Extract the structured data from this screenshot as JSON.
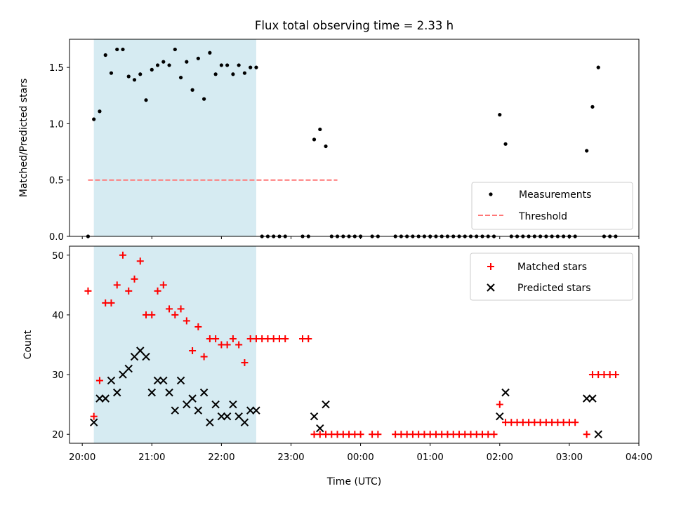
{
  "chart_data": [
    {
      "type": "scatter",
      "title": "Flux total observing time = 2.33 h",
      "xlabel": "",
      "ylabel": "Matched/Predicted stars",
      "xlim": [
        "19:49",
        "04:00"
      ],
      "ylim": [
        0,
        1.75
      ],
      "yticks": [
        "0.0",
        "0.5",
        "1.0",
        "1.5"
      ],
      "shaded_region": {
        "x": [
          "20:10",
          "22:30"
        ],
        "color": "#add8e6"
      },
      "legend": {
        "location": "lower-right",
        "entries": [
          "Measurements",
          "Threshold"
        ]
      },
      "threshold": {
        "name": "Threshold",
        "x": [
          "20:05",
          "23:40"
        ],
        "y": 0.5,
        "color": "#ff7777"
      },
      "series": [
        {
          "name": "Measurements",
          "color": "#000000",
          "points": [
            [
              "20:05",
              0.0
            ],
            [
              "20:10",
              1.04
            ],
            [
              "20:15",
              1.11
            ],
            [
              "20:20",
              1.61
            ],
            [
              "20:25",
              1.45
            ],
            [
              "20:30",
              1.66
            ],
            [
              "20:35",
              1.66
            ],
            [
              "20:40",
              1.42
            ],
            [
              "20:45",
              1.39
            ],
            [
              "20:50",
              1.44
            ],
            [
              "20:55",
              1.21
            ],
            [
              "21:00",
              1.48
            ],
            [
              "21:05",
              1.52
            ],
            [
              "21:10",
              1.55
            ],
            [
              "21:15",
              1.52
            ],
            [
              "21:20",
              1.66
            ],
            [
              "21:25",
              1.41
            ],
            [
              "21:30",
              1.55
            ],
            [
              "21:35",
              1.3
            ],
            [
              "21:40",
              1.58
            ],
            [
              "21:45",
              1.22
            ],
            [
              "21:50",
              1.63
            ],
            [
              "21:55",
              1.44
            ],
            [
              "22:00",
              1.52
            ],
            [
              "22:05",
              1.52
            ],
            [
              "22:10",
              1.44
            ],
            [
              "22:15",
              1.52
            ],
            [
              "22:20",
              1.45
            ],
            [
              "22:25",
              1.5
            ],
            [
              "22:30",
              1.5
            ],
            [
              "22:35",
              0.0
            ],
            [
              "22:40",
              0.0
            ],
            [
              "22:45",
              0.0
            ],
            [
              "22:50",
              0.0
            ],
            [
              "22:55",
              0.0
            ],
            [
              "23:10",
              0.0
            ],
            [
              "23:15",
              0.0
            ],
            [
              "23:20",
              0.86
            ],
            [
              "23:25",
              0.95
            ],
            [
              "23:30",
              0.8
            ],
            [
              "23:35",
              0.0
            ],
            [
              "23:40",
              0.0
            ],
            [
              "23:45",
              0.0
            ],
            [
              "23:50",
              0.0
            ],
            [
              "23:55",
              0.0
            ],
            [
              "00:00",
              0.0
            ],
            [
              "00:10",
              0.0
            ],
            [
              "00:15",
              0.0
            ],
            [
              "00:30",
              0.0
            ],
            [
              "00:35",
              0.0
            ],
            [
              "00:40",
              0.0
            ],
            [
              "00:45",
              0.0
            ],
            [
              "00:50",
              0.0
            ],
            [
              "00:55",
              0.0
            ],
            [
              "01:00",
              0.0
            ],
            [
              "01:05",
              0.0
            ],
            [
              "01:10",
              0.0
            ],
            [
              "01:15",
              0.0
            ],
            [
              "01:20",
              0.0
            ],
            [
              "01:25",
              0.0
            ],
            [
              "01:30",
              0.0
            ],
            [
              "01:35",
              0.0
            ],
            [
              "01:40",
              0.0
            ],
            [
              "01:45",
              0.0
            ],
            [
              "01:50",
              0.0
            ],
            [
              "01:55",
              0.0
            ],
            [
              "02:00",
              1.08
            ],
            [
              "02:05",
              0.82
            ],
            [
              "02:10",
              0.0
            ],
            [
              "02:15",
              0.0
            ],
            [
              "02:20",
              0.0
            ],
            [
              "02:25",
              0.0
            ],
            [
              "02:30",
              0.0
            ],
            [
              "02:35",
              0.0
            ],
            [
              "02:40",
              0.0
            ],
            [
              "02:45",
              0.0
            ],
            [
              "02:50",
              0.0
            ],
            [
              "02:55",
              0.0
            ],
            [
              "03:00",
              0.0
            ],
            [
              "03:05",
              0.0
            ],
            [
              "03:15",
              0.76
            ],
            [
              "03:20",
              1.15
            ],
            [
              "03:25",
              1.5
            ],
            [
              "03:30",
              0.0
            ],
            [
              "03:35",
              0.0
            ],
            [
              "03:40",
              0.0
            ]
          ]
        }
      ]
    },
    {
      "type": "scatter",
      "title": "",
      "xlabel": "Time (UTC)",
      "ylabel": "Count",
      "xlim": [
        "19:49",
        "04:00"
      ],
      "ylim": [
        18.5,
        51.5
      ],
      "yticks": [
        "20",
        "30",
        "40",
        "50"
      ],
      "xticks": [
        "20:00",
        "21:00",
        "22:00",
        "23:00",
        "00:00",
        "01:00",
        "02:00",
        "03:00",
        "04:00"
      ],
      "shaded_region": {
        "x": [
          "20:10",
          "22:30"
        ],
        "color": "#add8e6"
      },
      "legend": {
        "location": "top-right",
        "entries": [
          "Matched stars",
          "Predicted stars"
        ]
      },
      "series": [
        {
          "name": "Matched stars",
          "marker": "+",
          "color": "#ff0000",
          "points": [
            [
              "20:05",
              44
            ],
            [
              "20:10",
              23
            ],
            [
              "20:15",
              29
            ],
            [
              "20:20",
              42
            ],
            [
              "20:25",
              42
            ],
            [
              "20:30",
              45
            ],
            [
              "20:35",
              50
            ],
            [
              "20:40",
              44
            ],
            [
              "20:45",
              46
            ],
            [
              "20:50",
              49
            ],
            [
              "20:55",
              40
            ],
            [
              "21:00",
              40
            ],
            [
              "21:05",
              44
            ],
            [
              "21:10",
              45
            ],
            [
              "21:15",
              41
            ],
            [
              "21:20",
              40
            ],
            [
              "21:25",
              41
            ],
            [
              "21:30",
              39
            ],
            [
              "21:35",
              34
            ],
            [
              "21:40",
              38
            ],
            [
              "21:45",
              33
            ],
            [
              "21:50",
              36
            ],
            [
              "21:55",
              36
            ],
            [
              "22:00",
              35
            ],
            [
              "22:05",
              35
            ],
            [
              "22:10",
              36
            ],
            [
              "22:15",
              35
            ],
            [
              "22:20",
              32
            ],
            [
              "22:25",
              36
            ],
            [
              "22:30",
              36
            ],
            [
              "22:35",
              36
            ],
            [
              "22:40",
              36
            ],
            [
              "22:45",
              36
            ],
            [
              "22:50",
              36
            ],
            [
              "22:55",
              36
            ],
            [
              "23:10",
              36
            ],
            [
              "23:15",
              36
            ],
            [
              "23:20",
              20
            ],
            [
              "23:25",
              20
            ],
            [
              "23:30",
              20
            ],
            [
              "23:35",
              20
            ],
            [
              "23:40",
              20
            ],
            [
              "23:45",
              20
            ],
            [
              "23:50",
              20
            ],
            [
              "23:55",
              20
            ],
            [
              "00:00",
              20
            ],
            [
              "00:10",
              20
            ],
            [
              "00:15",
              20
            ],
            [
              "00:30",
              20
            ],
            [
              "00:35",
              20
            ],
            [
              "00:40",
              20
            ],
            [
              "00:45",
              20
            ],
            [
              "00:50",
              20
            ],
            [
              "00:55",
              20
            ],
            [
              "01:00",
              20
            ],
            [
              "01:05",
              20
            ],
            [
              "01:10",
              20
            ],
            [
              "01:15",
              20
            ],
            [
              "01:20",
              20
            ],
            [
              "01:25",
              20
            ],
            [
              "01:30",
              20
            ],
            [
              "01:35",
              20
            ],
            [
              "01:40",
              20
            ],
            [
              "01:45",
              20
            ],
            [
              "01:50",
              20
            ],
            [
              "01:55",
              20
            ],
            [
              "02:00",
              25
            ],
            [
              "02:05",
              22
            ],
            [
              "02:10",
              22
            ],
            [
              "02:15",
              22
            ],
            [
              "02:20",
              22
            ],
            [
              "02:25",
              22
            ],
            [
              "02:30",
              22
            ],
            [
              "02:35",
              22
            ],
            [
              "02:40",
              22
            ],
            [
              "02:45",
              22
            ],
            [
              "02:50",
              22
            ],
            [
              "02:55",
              22
            ],
            [
              "03:00",
              22
            ],
            [
              "03:05",
              22
            ],
            [
              "03:15",
              20
            ],
            [
              "03:20",
              30
            ],
            [
              "03:25",
              30
            ],
            [
              "03:30",
              30
            ],
            [
              "03:35",
              30
            ],
            [
              "03:40",
              30
            ]
          ]
        },
        {
          "name": "Predicted stars",
          "marker": "x",
          "color": "#000000",
          "points": [
            [
              "20:10",
              22
            ],
            [
              "20:15",
              26
            ],
            [
              "20:20",
              26
            ],
            [
              "20:25",
              29
            ],
            [
              "20:30",
              27
            ],
            [
              "20:35",
              30
            ],
            [
              "20:40",
              31
            ],
            [
              "20:45",
              33
            ],
            [
              "20:50",
              34
            ],
            [
              "20:55",
              33
            ],
            [
              "21:00",
              27
            ],
            [
              "21:05",
              29
            ],
            [
              "21:10",
              29
            ],
            [
              "21:15",
              27
            ],
            [
              "21:20",
              24
            ],
            [
              "21:25",
              29
            ],
            [
              "21:30",
              25
            ],
            [
              "21:35",
              26
            ],
            [
              "21:40",
              24
            ],
            [
              "21:45",
              27
            ],
            [
              "21:50",
              22
            ],
            [
              "21:55",
              25
            ],
            [
              "22:00",
              23
            ],
            [
              "22:05",
              23
            ],
            [
              "22:10",
              25
            ],
            [
              "22:15",
              23
            ],
            [
              "22:20",
              22
            ],
            [
              "22:25",
              24
            ],
            [
              "22:30",
              24
            ],
            [
              "23:20",
              23
            ],
            [
              "23:25",
              21
            ],
            [
              "23:30",
              25
            ],
            [
              "02:00",
              23
            ],
            [
              "02:05",
              27
            ],
            [
              "03:15",
              26
            ],
            [
              "03:20",
              26
            ],
            [
              "03:25",
              20
            ]
          ]
        }
      ]
    }
  ]
}
